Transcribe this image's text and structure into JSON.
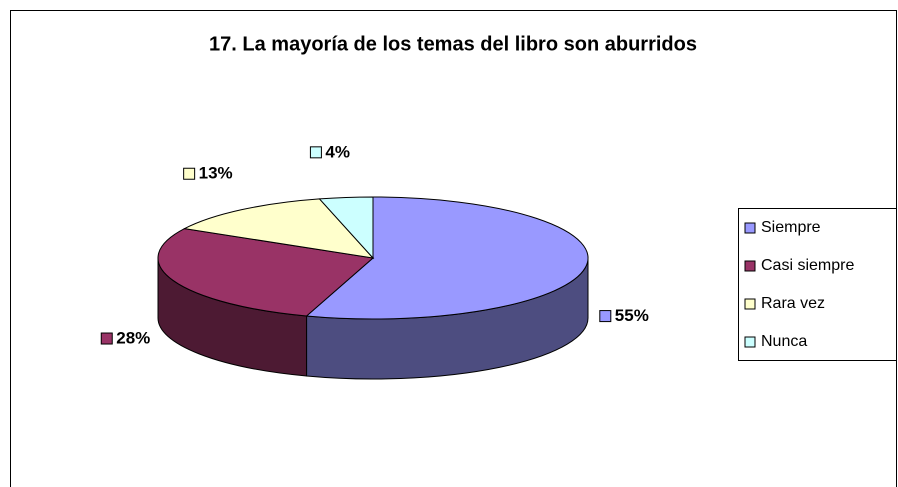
{
  "chart_data": {
    "type": "pie",
    "title": "17. La mayoría de los temas del libro son aburridos",
    "categories": [
      "Siempre",
      "Casi siempre",
      "Rara vez",
      "Nunca"
    ],
    "values": [
      55,
      28,
      13,
      4
    ],
    "value_labels": [
      "55%",
      "28%",
      "13%",
      "4%"
    ],
    "colors": [
      "#9999ff",
      "#993366",
      "#ffffcc",
      "#ccffff"
    ],
    "legend": "right"
  }
}
